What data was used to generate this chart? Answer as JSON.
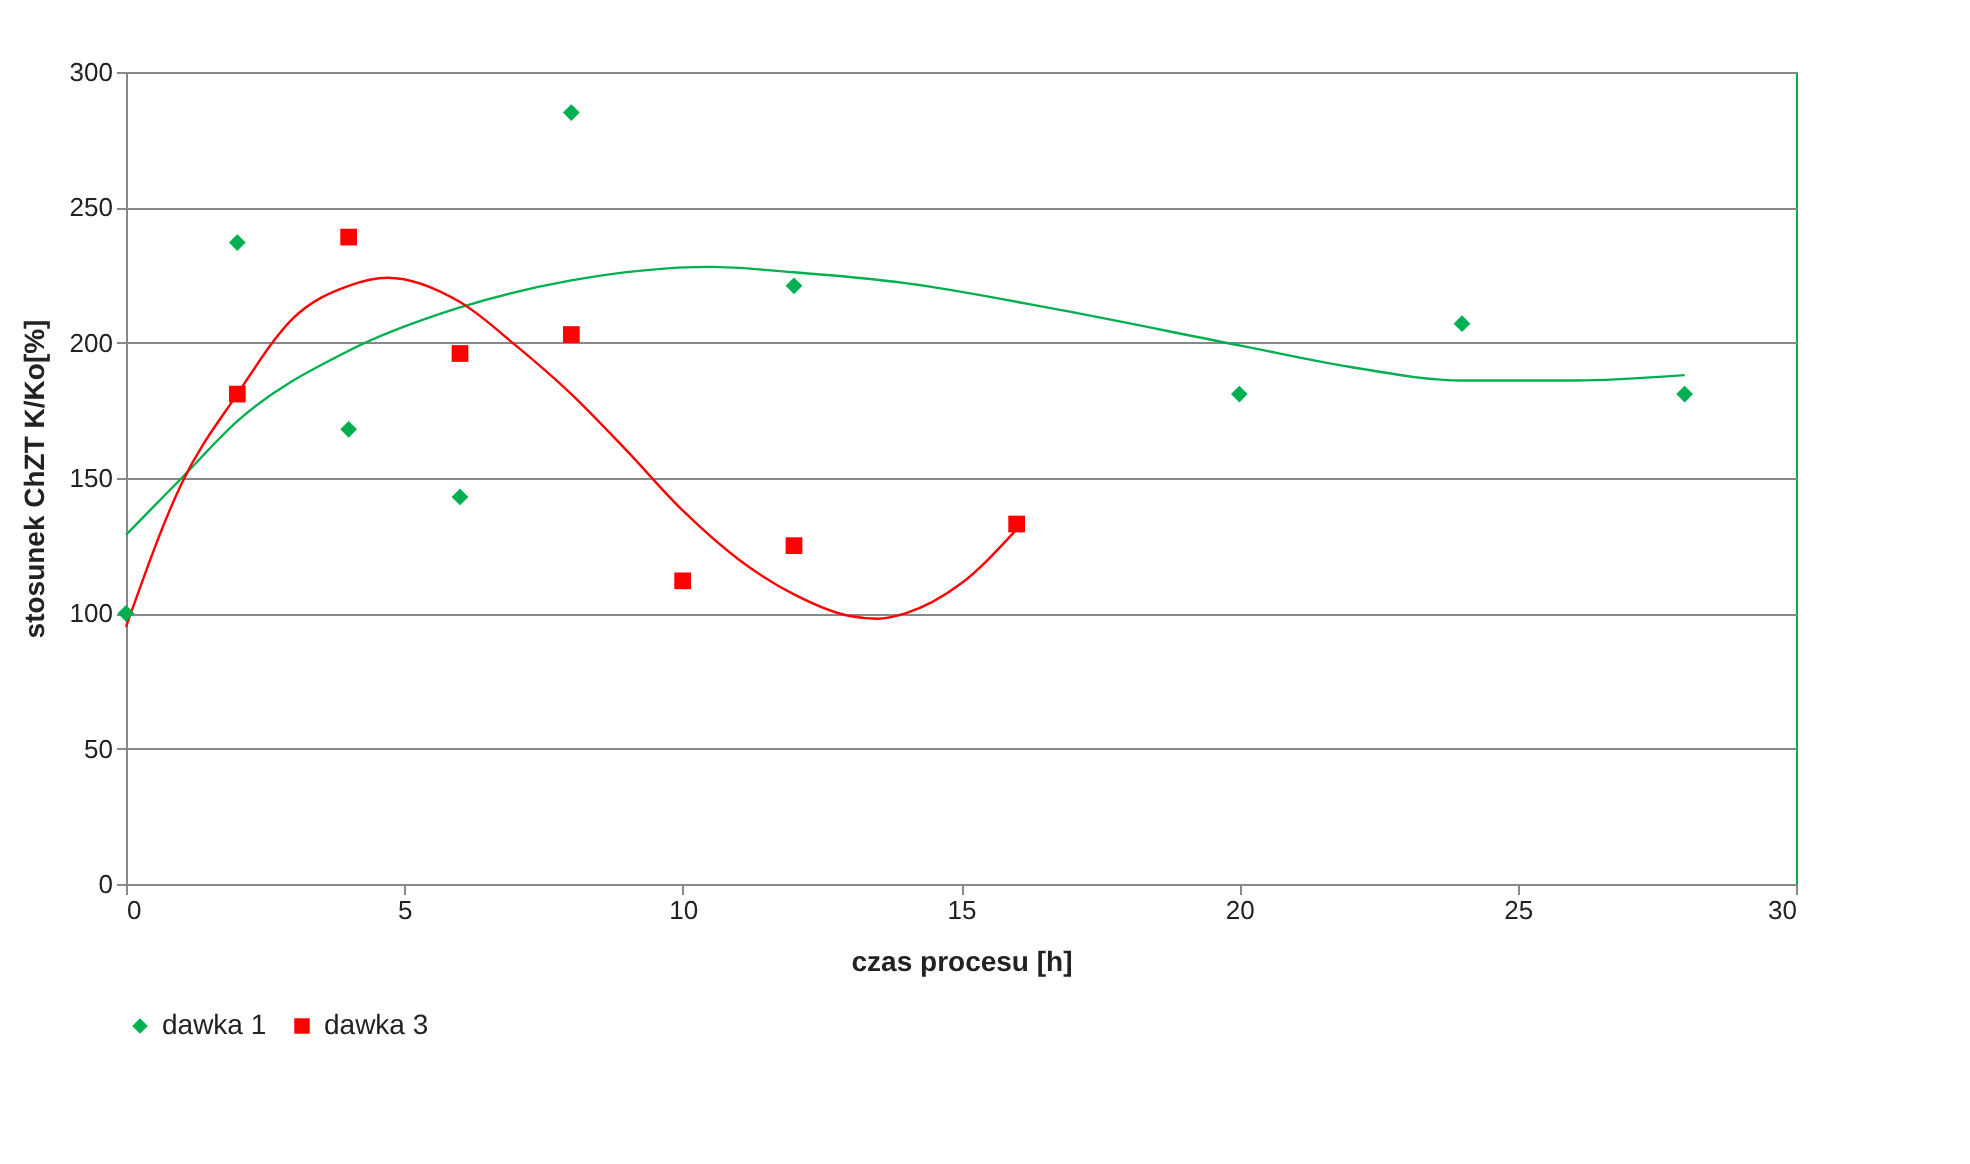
{
  "chart_data": {
    "type": "scatter",
    "xlabel": "czas procesu [h]",
    "ylabel": "stosunek ChZT K/Ko[%]",
    "xlim": [
      0,
      30
    ],
    "xticks": [
      0,
      5,
      10,
      15,
      20,
      25,
      30
    ],
    "ylim": [
      0,
      300
    ],
    "yticks": [
      0,
      50,
      100,
      150,
      200,
      250,
      300
    ],
    "grid": "y",
    "legend": "bottom",
    "series": [
      {
        "name": "dawka 1",
        "marker": "diamond",
        "color": "#00b050",
        "x": [
          0,
          2,
          4,
          6,
          8,
          12,
          20,
          24,
          28
        ],
        "values": [
          100,
          237,
          168,
          143,
          285,
          221,
          181,
          207,
          181
        ]
      },
      {
        "name": "dawka 3",
        "marker": "square",
        "color": "#ff0000",
        "x": [
          2,
          4,
          6,
          8,
          10,
          12,
          16
        ],
        "values": [
          181,
          239,
          196,
          203,
          112,
          125,
          133
        ]
      },
      {
        "type": "line",
        "marker": "none",
        "color": "#00b050",
        "x": [
          0,
          1,
          2,
          4,
          6,
          8,
          10.5,
          12,
          14,
          16.8,
          20,
          22,
          24,
          26,
          28
        ],
        "values": [
          129,
          150,
          171,
          197,
          213,
          223,
          228,
          226,
          222,
          212,
          199,
          191,
          186,
          186,
          188
        ]
      },
      {
        "type": "line",
        "marker": "none",
        "color": "#ff0000",
        "x": [
          0,
          1,
          2,
          3,
          4,
          4.7,
          6,
          7,
          8,
          9,
          10,
          11,
          12,
          13,
          13.5,
          14,
          15,
          16
        ],
        "values": [
          95,
          148,
          181,
          209,
          221,
          224,
          215,
          199,
          181,
          160,
          138,
          120,
          107,
          99,
          98,
          100,
          111,
          131
        ]
      }
    ]
  }
}
